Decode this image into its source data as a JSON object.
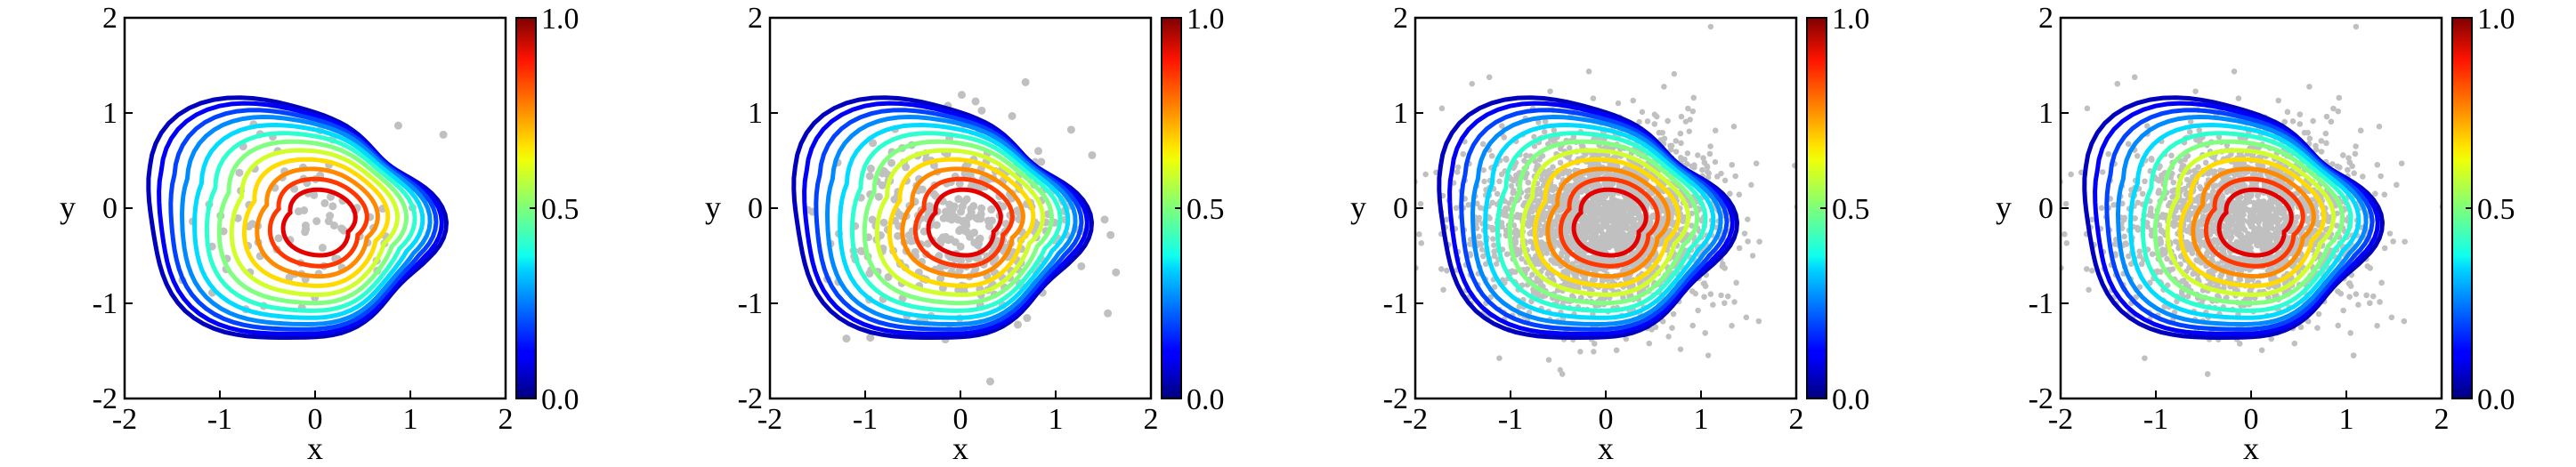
{
  "chart_data": [
    {
      "type": "contour",
      "n_samples": "small",
      "xlabel": "x",
      "ylabel": "y",
      "xlim": [
        -2,
        2
      ],
      "ylim": [
        -2,
        2
      ],
      "xticks": [
        "-2",
        "-1",
        "0",
        "1",
        "2"
      ],
      "yticks": [
        "-2",
        "-1",
        "0",
        "1",
        "2"
      ],
      "colorbar": {
        "ticks": [
          "0.0",
          "0.5",
          "1.0"
        ],
        "range": [
          0,
          1
        ],
        "colormap": "jet"
      },
      "contour_levels": [
        0.06,
        0.12,
        0.19,
        0.26,
        0.34,
        0.42,
        0.5,
        0.58,
        0.66,
        0.74,
        0.82,
        0.9
      ],
      "scatter_color": "#c0c0c0",
      "grid": false
    },
    {
      "type": "contour",
      "n_samples": "medium",
      "xlabel": "x",
      "ylabel": "y",
      "xlim": [
        -2,
        2
      ],
      "ylim": [
        -2,
        2
      ],
      "xticks": [
        "-2",
        "-1",
        "0",
        "1",
        "2"
      ],
      "yticks": [
        "-2",
        "-1",
        "0",
        "1",
        "2"
      ],
      "colorbar": {
        "ticks": [
          "0.0",
          "0.5",
          "1.0"
        ],
        "range": [
          0,
          1
        ],
        "colormap": "jet"
      },
      "contour_levels": [
        0.06,
        0.12,
        0.19,
        0.26,
        0.34,
        0.42,
        0.5,
        0.58,
        0.66,
        0.74,
        0.82,
        0.9
      ],
      "scatter_color": "#c0c0c0",
      "grid": false
    },
    {
      "type": "contour",
      "n_samples": "large",
      "xlabel": "x",
      "ylabel": "y",
      "xlim": [
        -2,
        2
      ],
      "ylim": [
        -2,
        2
      ],
      "xticks": [
        "-2",
        "-1",
        "0",
        "1",
        "2"
      ],
      "yticks": [
        "-2",
        "-1",
        "0",
        "1",
        "2"
      ],
      "colorbar": {
        "ticks": [
          "0.0",
          "0.5",
          "1.0"
        ],
        "range": [
          0,
          1
        ],
        "colormap": "jet"
      },
      "contour_levels": [
        0.06,
        0.12,
        0.19,
        0.26,
        0.34,
        0.42,
        0.5,
        0.58,
        0.66,
        0.74,
        0.82,
        0.9
      ],
      "scatter_color": "#c0c0c0",
      "grid": false
    },
    {
      "type": "contour",
      "n_samples": "large",
      "xlabel": "x",
      "ylabel": "y",
      "xlim": [
        -2,
        2
      ],
      "ylim": [
        -2,
        2
      ],
      "xticks": [
        "-2",
        "-1",
        "0",
        "1",
        "2"
      ],
      "yticks": [
        "-2",
        "-1",
        "0",
        "1",
        "2"
      ],
      "colorbar": {
        "ticks": [
          "0.0",
          "0.5",
          "1.0"
        ],
        "range": [
          0,
          1
        ],
        "colormap": "jet"
      },
      "contour_levels": [
        0.06,
        0.12,
        0.19,
        0.26,
        0.34,
        0.42,
        0.5,
        0.58,
        0.66,
        0.74,
        0.82,
        0.9
      ],
      "scatter_color": "#c0c0c0",
      "grid": false
    }
  ]
}
